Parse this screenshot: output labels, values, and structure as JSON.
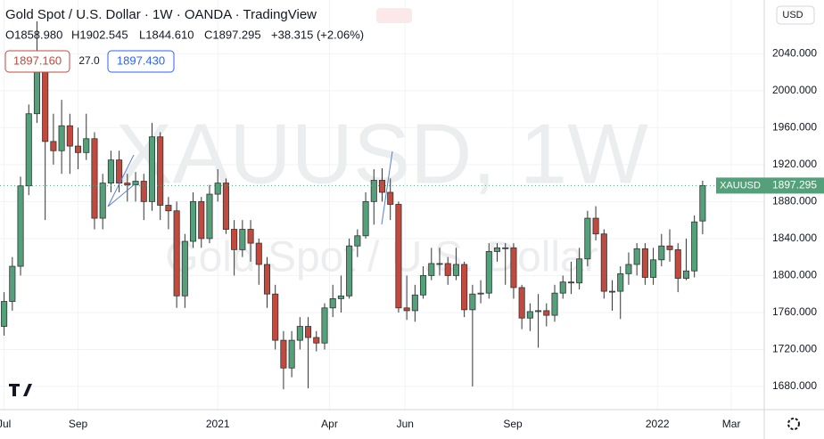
{
  "header": {
    "title": "Gold Spot / U.S. Dollar · 1W · OANDA · TradingView",
    "ohlc": [
      "O1858.980",
      "H1902.545",
      "L1844.610",
      "C1897.295",
      "+38.315 (+2.06%)"
    ],
    "bid": "1897.160",
    "spread": "27.0",
    "ask": "1897.430",
    "currency": "USD",
    "watermark": [
      "XAUUSD, 1W",
      "Gold Spot / U.S. Dollar"
    ]
  },
  "chart_data": {
    "type": "candlestick",
    "symbol": "XAUUSD",
    "last_price": 1897.295,
    "up_color": "#53a07a",
    "down_color": "#c2493d",
    "open": [
      1745,
      1772,
      1810,
      1897,
      1975,
      2030,
      1945,
      1935,
      1962,
      1940,
      1933,
      1948,
      1862,
      1900,
      1925,
      1900,
      1898,
      1902,
      1880,
      1950,
      1876,
      1870,
      1778,
      1837,
      1880,
      1840,
      1888,
      1900,
      1850,
      1828,
      1850,
      1835,
      1812,
      1780,
      1730,
      1700,
      1730,
      1745,
      1733,
      1727,
      1765,
      1775,
      1778,
      1832,
      1843,
      1880,
      1903,
      1890,
      1877,
      1765,
      1762,
      1779,
      1800,
      1813,
      1813,
      1800,
      1812,
      1763,
      1780,
      1781,
      1826,
      1830,
      1830,
      1787,
      1754,
      1761,
      1762,
      1757,
      1781,
      1793,
      1792,
      1818,
      1862,
      1845,
      1783,
      1783,
      1802,
      1812,
      1829,
      1798,
      1817,
      1832,
      1828,
      1797,
      1805,
      1858.98
    ],
    "high": [
      1782,
      1820,
      1907,
      1985,
      2075,
      2040,
      1975,
      1990,
      1975,
      1960,
      1975,
      1955,
      1910,
      1935,
      1935,
      1910,
      1912,
      1910,
      1965,
      1955,
      1885,
      1880,
      1845,
      1890,
      1885,
      1898,
      1915,
      1905,
      1860,
      1860,
      1860,
      1840,
      1820,
      1790,
      1740,
      1740,
      1755,
      1755,
      1740,
      1770,
      1790,
      1800,
      1840,
      1850,
      1890,
      1915,
      1916,
      1905,
      1880,
      1800,
      1790,
      1810,
      1830,
      1830,
      1820,
      1830,
      1815,
      1790,
      1795,
      1835,
      1835,
      1835,
      1835,
      1790,
      1770,
      1780,
      1770,
      1790,
      1800,
      1815,
      1830,
      1870,
      1875,
      1850,
      1795,
      1810,
      1825,
      1835,
      1835,
      1830,
      1845,
      1850,
      1835,
      1840,
      1865,
      1902.545
    ],
    "low": [
      1735,
      1762,
      1800,
      1887,
      1965,
      1860,
      1920,
      1910,
      1910,
      1915,
      1925,
      1850,
      1850,
      1890,
      1890,
      1880,
      1880,
      1860,
      1870,
      1860,
      1850,
      1765,
      1765,
      1830,
      1830,
      1835,
      1880,
      1845,
      1800,
      1820,
      1815,
      1790,
      1765,
      1720,
      1677,
      1690,
      1720,
      1678,
      1718,
      1720,
      1755,
      1760,
      1775,
      1820,
      1840,
      1855,
      1880,
      1860,
      1760,
      1752,
      1750,
      1775,
      1795,
      1800,
      1790,
      1795,
      1755,
      1680,
      1770,
      1775,
      1815,
      1790,
      1775,
      1742,
      1740,
      1722,
      1745,
      1750,
      1775,
      1780,
      1785,
      1810,
      1838,
      1775,
      1762,
      1753,
      1790,
      1800,
      1790,
      1790,
      1810,
      1815,
      1782,
      1795,
      1798,
      1844.61
    ],
    "close": [
      1772,
      1810,
      1897,
      1975,
      2030,
      1945,
      1935,
      1962,
      1940,
      1933,
      1948,
      1862,
      1900,
      1925,
      1900,
      1898,
      1902,
      1880,
      1950,
      1876,
      1870,
      1778,
      1837,
      1880,
      1840,
      1888,
      1900,
      1850,
      1828,
      1850,
      1835,
      1812,
      1780,
      1730,
      1700,
      1730,
      1745,
      1733,
      1727,
      1765,
      1775,
      1778,
      1832,
      1843,
      1880,
      1903,
      1890,
      1877,
      1765,
      1762,
      1779,
      1800,
      1813,
      1813,
      1800,
      1812,
      1763,
      1780,
      1781,
      1826,
      1830,
      1830,
      1787,
      1754,
      1761,
      1762,
      1757,
      1781,
      1793,
      1792,
      1818,
      1862,
      1845,
      1783,
      1783,
      1802,
      1812,
      1829,
      1798,
      1817,
      1832,
      1828,
      1797,
      1805,
      1858,
      1897.295
    ],
    "xlim": [
      -0.5,
      92.5
    ],
    "xticks": [
      {
        "value": 0,
        "label": "Jul"
      },
      {
        "value": 9,
        "label": "Sep"
      },
      {
        "value": 26,
        "label": "2021"
      },
      {
        "value": 39.6,
        "label": "Apr"
      },
      {
        "value": 48.8,
        "label": "Jun"
      },
      {
        "value": 61.9,
        "label": "Sep"
      },
      {
        "value": 79.5,
        "label": "2022"
      },
      {
        "value": 88.5,
        "label": "Mar"
      }
    ],
    "ylim": [
      1655,
      2098
    ],
    "yticks": [
      {
        "value": 1680,
        "label": "1680.000"
      },
      {
        "value": 1720,
        "label": "1720.000"
      },
      {
        "value": 1760,
        "label": "1760.000"
      },
      {
        "value": 1800,
        "label": "1800.000"
      },
      {
        "value": 1840,
        "label": "1840.000"
      },
      {
        "value": 1880,
        "label": "1880.000"
      },
      {
        "value": 1920,
        "label": "1920.000"
      },
      {
        "value": 1960,
        "label": "1960.000"
      },
      {
        "value": 2000,
        "label": "2000.000"
      },
      {
        "value": 2040,
        "label": "2040.000"
      }
    ],
    "grid": true
  }
}
